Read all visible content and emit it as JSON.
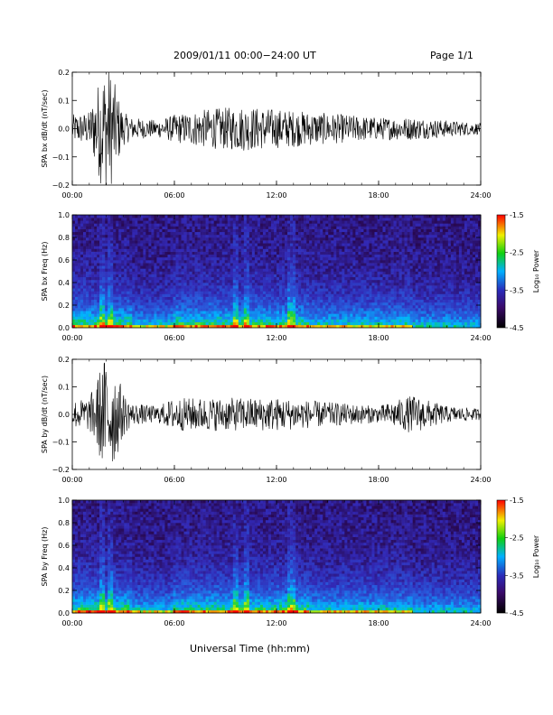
{
  "header": {
    "title": "2009/01/11  00:00−24:00 UT",
    "page": "Page 1/1"
  },
  "x_axis_label": "Universal Time (hh:mm)",
  "chart_data": [
    {
      "type": "line",
      "ylabel": "SPA bx dB/dt (nT/sec)",
      "xlabel": "",
      "x_ticks": [
        "00:00",
        "06:00",
        "12:00",
        "18:00",
        "24:00"
      ],
      "xlim_hours": [
        0,
        24
      ],
      "ylim": [
        -0.2,
        0.2
      ],
      "y_ticks": [
        "0.2",
        "0.1",
        "0.0",
        "−0.1",
        "−0.2"
      ],
      "y_tick_values": [
        0.2,
        0.1,
        0.0,
        -0.1,
        -0.2
      ],
      "envelope": {
        "hours": [
          0,
          1,
          1.5,
          1.8,
          2.2,
          2.6,
          3,
          3.5,
          5,
          6,
          7,
          8,
          10,
          12,
          14,
          16,
          18,
          19,
          20,
          22,
          24
        ],
        "amplitude": [
          0.05,
          0.06,
          0.16,
          0.22,
          0.22,
          0.14,
          0.06,
          0.04,
          0.03,
          0.05,
          0.06,
          0.07,
          0.08,
          0.07,
          0.06,
          0.05,
          0.04,
          0.04,
          0.04,
          0.03,
          0.02
        ]
      },
      "grid": false
    },
    {
      "type": "heatmap",
      "ylabel": "SPA bx Freq (Hz)",
      "xlabel": "",
      "x_ticks": [
        "00:00",
        "06:00",
        "12:00",
        "18:00",
        "24:00"
      ],
      "xlim_hours": [
        0,
        24
      ],
      "ylim": [
        0,
        1
      ],
      "y_ticks": [
        "1.0",
        "0.8",
        "0.6",
        "0.4",
        "0.2",
        "0.0"
      ],
      "y_tick_values": [
        1.0,
        0.8,
        0.6,
        0.4,
        0.2,
        0.0
      ],
      "colorbar": {
        "label": "Log₁₀ Power",
        "range": [
          -4.5,
          -1.5
        ],
        "ticks": [
          "-1.5",
          "-2.5",
          "-3.5",
          "-4.5"
        ],
        "tick_values": [
          -1.5,
          -2.5,
          -3.5,
          -4.5
        ]
      },
      "features": {
        "data_gap_hours": [
          11.8,
          11.9
        ],
        "bright_vertical_bands_hours": [
          1.8,
          2.3,
          9.6,
          10.2,
          12.9
        ]
      }
    },
    {
      "type": "line",
      "ylabel": "SPA by dB/dt (nT/sec)",
      "xlabel": "",
      "x_ticks": [
        "00:00",
        "06:00",
        "12:00",
        "18:00",
        "24:00"
      ],
      "xlim_hours": [
        0,
        24
      ],
      "ylim": [
        -0.2,
        0.2
      ],
      "y_ticks": [
        "0.2",
        "0.1",
        "0.0",
        "−0.1",
        "−0.2"
      ],
      "y_tick_values": [
        0.2,
        0.1,
        0.0,
        -0.1,
        -0.2
      ],
      "envelope": {
        "hours": [
          0,
          1,
          1.5,
          1.8,
          2.2,
          2.6,
          3,
          3.5,
          5,
          6,
          7,
          8,
          10,
          12,
          14,
          16,
          18,
          19,
          20,
          20.5,
          22,
          24
        ],
        "amplitude": [
          0.05,
          0.06,
          0.14,
          0.2,
          0.22,
          0.16,
          0.08,
          0.04,
          0.03,
          0.06,
          0.06,
          0.06,
          0.06,
          0.06,
          0.05,
          0.04,
          0.03,
          0.05,
          0.07,
          0.06,
          0.03,
          0.02
        ]
      },
      "grid": false
    },
    {
      "type": "heatmap",
      "ylabel": "SPA by Freq (Hz)",
      "xlabel": "",
      "x_ticks": [
        "00:00",
        "06:00",
        "12:00",
        "18:00",
        "24:00"
      ],
      "xlim_hours": [
        0,
        24
      ],
      "ylim": [
        0,
        1
      ],
      "y_ticks": [
        "1.0",
        "0.8",
        "0.6",
        "0.4",
        "0.2",
        "0.0"
      ],
      "y_tick_values": [
        1.0,
        0.8,
        0.6,
        0.4,
        0.2,
        0.0
      ],
      "colorbar": {
        "label": "Log₁₀ Power",
        "range": [
          -4.5,
          -1.5
        ],
        "ticks": [
          "-1.5",
          "-2.5",
          "-3.5",
          "-4.5"
        ],
        "tick_values": [
          -1.5,
          -2.5,
          -3.5,
          -4.5
        ]
      },
      "features": {
        "data_gap_hours": [
          11.8,
          11.9
        ],
        "bright_vertical_bands_hours": [
          1.8,
          2.3,
          9.6,
          10.2,
          12.9
        ]
      }
    }
  ]
}
